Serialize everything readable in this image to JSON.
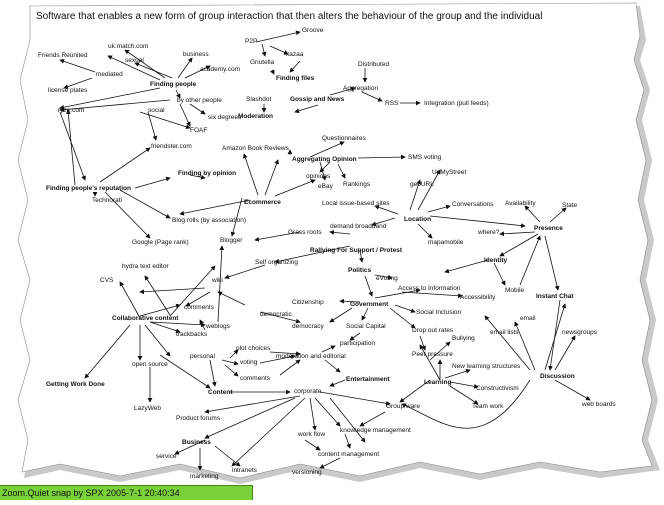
{
  "title": "Software that enables a new form of group interaction that then alters the behaviour of the group and the individual",
  "caption": "Zoom.Quiet snap by SPX 2005-7-1  20:40:34",
  "nodes": {
    "p2p": "P2P",
    "groove": "Groove",
    "kazaa": "kazaa",
    "gnutella": "Gnutella",
    "finding_files": "Finding files",
    "distributed": "Distributed",
    "aggregation": "Aggregation",
    "rss": "RSS",
    "integration": "Integration (pull feeds)",
    "gossip": "Gossip and News",
    "slashdot": "Slashdot",
    "moderation": "Moderation",
    "friends": "Friends Reunited",
    "ukmatch": "uk.match.com",
    "sexual": "sexual",
    "business_n": "business",
    "academy": "academy.com",
    "mediated": "mediated",
    "finding_people": "Finding people",
    "license": "license plates",
    "by_other": "by other people",
    "ryze": "ryze.com",
    "social": "social",
    "six": "six degrees",
    "foaf": "FOAF",
    "friendster": "friendster.com",
    "questionnaires": "Questionnaires",
    "amazon": "Amazon Book Reviews",
    "agg_opinion": "Aggregating Opinion",
    "sms": "SMS voting",
    "opinions": "opinions",
    "rankings": "Rankings",
    "ebay": "eBay",
    "finding_opinion": "Finding by opinion",
    "ecommerce": "Ecommerce",
    "finding_rep": "Finding people's reputation",
    "technorati": "Technorati",
    "google": "Google (Page rank)",
    "blogrolls": "Blog rolls (by association)",
    "blogger": "Blogger",
    "upmystreet": "UpMyStreet",
    "geourl": "geoURL",
    "conversations": "Conversations",
    "local_issue": "Local issue-based sites",
    "demand": "demand  broadband",
    "location": "Location",
    "availability": "Availability",
    "state": "State",
    "where": "where?",
    "presence": "Presence",
    "mapamobile": "mapamobile",
    "grassroots": "Grass roots",
    "rallying": "Rallying For Support / Protest",
    "identity": "Identity",
    "self_org": "Self organizing",
    "politics": "Politics",
    "mobile": "Mobile",
    "evoting": "eVoting",
    "access": "Access to Information",
    "accessibility": "Accessibility",
    "instant_chat": "Instant Chat",
    "hydra": "hydra text editor",
    "cvs": "CVS",
    "wiki": "wiki",
    "citizenship": "Citizenship",
    "government": "Government",
    "social_incl": "Social Inclusion",
    "democratic": "democratic",
    "comments1": "comments",
    "collab": "Collaborative content",
    "trackbacks": "trackbacks",
    "weblogs": "weblogs",
    "democracy": "democracy",
    "social_capital": "Social Capital",
    "dropout": "Drop out rates",
    "email": "email",
    "newsgroups": "newsgroups",
    "email_lists": "email lists",
    "personal": "personal",
    "plot": "plot choices",
    "voting": "voting",
    "participation": "participation",
    "bullying": "Bullying",
    "moderation_ed": "moderation and editorial",
    "peer": "Peer pressure",
    "comments2": "comments",
    "open_source": "open source",
    "new_learning": "New learning structures",
    "entertainment": "Entertainment",
    "discussion": "Discussion",
    "content": "Content",
    "corporate": "corporate",
    "learning": "Learning",
    "constructivism": "Constructivism",
    "getting_work": "Getting Work Done",
    "lazyweb": "LazyWeb",
    "groupware": "Group ware",
    "teamwork": "Team work",
    "web_boards": "web boards",
    "product_forums": "Product forums",
    "knowledge": "knowledge management",
    "workflow": "work flow",
    "business": "Business",
    "service": "service",
    "content_mgmt": "content management",
    "marketing": "marketing",
    "intranets": "intranets",
    "versioning": "versioning"
  },
  "colors": {
    "background": "#ffffff",
    "ink": "#111111",
    "caption_bg": "#7ad13a",
    "shadow": "#cccccc"
  }
}
